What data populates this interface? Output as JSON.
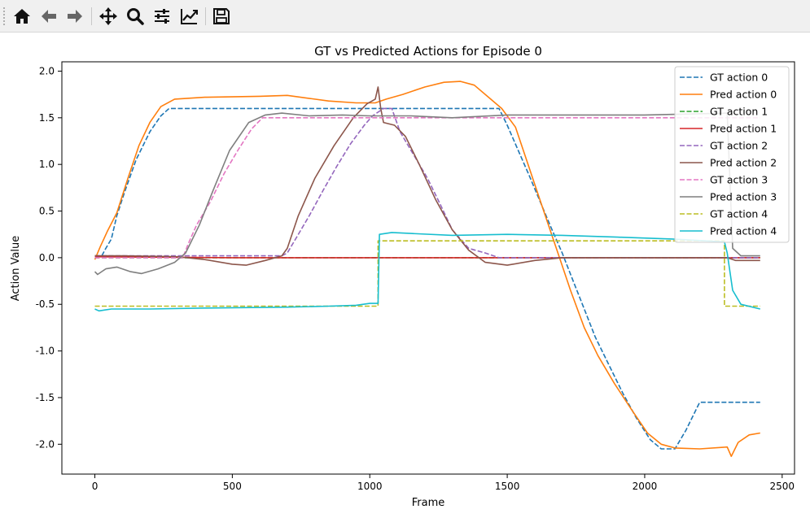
{
  "toolbar": {
    "items": [
      {
        "icon": "home-icon"
      },
      {
        "icon": "back-arrow-icon"
      },
      {
        "icon": "forward-arrow-icon"
      },
      {
        "icon": "pan-icon"
      },
      {
        "icon": "zoom-icon"
      },
      {
        "icon": "configure-subplots-icon"
      },
      {
        "icon": "edit-axis-icon"
      },
      {
        "icon": "save-icon"
      }
    ]
  },
  "chart_data": {
    "type": "line",
    "title": "GT vs Predicted Actions for Episode 0",
    "xlabel": "Frame",
    "ylabel": "Action Value",
    "xlim": [
      -120,
      2545
    ],
    "ylim": [
      -2.32,
      2.1
    ],
    "xticks": [
      0,
      500,
      1000,
      1500,
      2000,
      2500
    ],
    "yticks": [
      -2.0,
      -1.5,
      -1.0,
      -0.5,
      0.0,
      0.5,
      1.0,
      1.5,
      2.0
    ],
    "grid": false,
    "legend": "top-right",
    "series": [
      {
        "name": "GT action 0",
        "style": "dashed",
        "color": "#1f77b4",
        "points": [
          [
            0,
            0.02
          ],
          [
            25,
            0.02
          ],
          [
            40,
            0.1
          ],
          [
            60,
            0.2
          ],
          [
            80,
            0.45
          ],
          [
            110,
            0.72
          ],
          [
            150,
            1.05
          ],
          [
            200,
            1.35
          ],
          [
            240,
            1.52
          ],
          [
            270,
            1.6
          ],
          [
            1470,
            1.6
          ],
          [
            1500,
            1.42
          ],
          [
            1540,
            1.15
          ],
          [
            1580,
            0.88
          ],
          [
            1620,
            0.6
          ],
          [
            1660,
            0.32
          ],
          [
            1700,
            0.05
          ],
          [
            1740,
            -0.25
          ],
          [
            1780,
            -0.55
          ],
          [
            1820,
            -0.85
          ],
          [
            1870,
            -1.15
          ],
          [
            1920,
            -1.45
          ],
          [
            1970,
            -1.72
          ],
          [
            2020,
            -1.95
          ],
          [
            2060,
            -2.05
          ],
          [
            2110,
            -2.05
          ],
          [
            2150,
            -1.85
          ],
          [
            2200,
            -1.55
          ],
          [
            2420,
            -1.55
          ]
        ]
      },
      {
        "name": "Pred action 0",
        "style": "solid",
        "color": "#ff7f0e",
        "points": [
          [
            0,
            -0.02
          ],
          [
            20,
            0.12
          ],
          [
            45,
            0.28
          ],
          [
            80,
            0.48
          ],
          [
            120,
            0.85
          ],
          [
            160,
            1.2
          ],
          [
            200,
            1.45
          ],
          [
            240,
            1.62
          ],
          [
            290,
            1.7
          ],
          [
            400,
            1.72
          ],
          [
            600,
            1.73
          ],
          [
            700,
            1.74
          ],
          [
            850,
            1.68
          ],
          [
            950,
            1.66
          ],
          [
            1020,
            1.66
          ],
          [
            1060,
            1.7
          ],
          [
            1120,
            1.75
          ],
          [
            1200,
            1.83
          ],
          [
            1270,
            1.88
          ],
          [
            1330,
            1.89
          ],
          [
            1380,
            1.85
          ],
          [
            1440,
            1.7
          ],
          [
            1480,
            1.6
          ],
          [
            1530,
            1.4
          ],
          [
            1570,
            1.05
          ],
          [
            1610,
            0.7
          ],
          [
            1650,
            0.35
          ],
          [
            1690,
            0.0
          ],
          [
            1730,
            -0.35
          ],
          [
            1780,
            -0.75
          ],
          [
            1830,
            -1.05
          ],
          [
            1890,
            -1.35
          ],
          [
            1950,
            -1.62
          ],
          [
            2010,
            -1.88
          ],
          [
            2060,
            -2.0
          ],
          [
            2110,
            -2.04
          ],
          [
            2200,
            -2.05
          ],
          [
            2300,
            -2.03
          ],
          [
            2315,
            -2.13
          ],
          [
            2340,
            -1.98
          ],
          [
            2380,
            -1.9
          ],
          [
            2420,
            -1.88
          ]
        ]
      },
      {
        "name": "GT action 1",
        "style": "dashed",
        "color": "#2ca02c",
        "points": [
          [
            0,
            0.0
          ],
          [
            2420,
            0.0
          ]
        ]
      },
      {
        "name": "Pred action 1",
        "style": "solid",
        "color": "#d62728",
        "points": [
          [
            0,
            0.01
          ],
          [
            500,
            0.0
          ],
          [
            1000,
            0.0
          ],
          [
            1500,
            0.0
          ],
          [
            2000,
            0.0
          ],
          [
            2420,
            0.0
          ]
        ]
      },
      {
        "name": "GT action 2",
        "style": "dashed",
        "color": "#9467bd",
        "points": [
          [
            0,
            0.02
          ],
          [
            680,
            0.02
          ],
          [
            700,
            0.05
          ],
          [
            730,
            0.2
          ],
          [
            780,
            0.45
          ],
          [
            830,
            0.72
          ],
          [
            880,
            0.98
          ],
          [
            930,
            1.22
          ],
          [
            980,
            1.42
          ],
          [
            1010,
            1.52
          ],
          [
            1050,
            1.6
          ],
          [
            1080,
            1.6
          ],
          [
            1110,
            1.35
          ],
          [
            1160,
            1.1
          ],
          [
            1210,
            0.85
          ],
          [
            1260,
            0.55
          ],
          [
            1300,
            0.3
          ],
          [
            1360,
            0.1
          ],
          [
            1420,
            0.05
          ],
          [
            1470,
            0.0
          ],
          [
            2420,
            0.0
          ]
        ]
      },
      {
        "name": "Pred action 2",
        "style": "solid",
        "color": "#8c564b",
        "points": [
          [
            0,
            0.02
          ],
          [
            100,
            0.02
          ],
          [
            300,
            0.01
          ],
          [
            400,
            -0.02
          ],
          [
            500,
            -0.07
          ],
          [
            550,
            -0.08
          ],
          [
            620,
            -0.03
          ],
          [
            680,
            0.02
          ],
          [
            700,
            0.1
          ],
          [
            740,
            0.45
          ],
          [
            800,
            0.85
          ],
          [
            870,
            1.2
          ],
          [
            940,
            1.5
          ],
          [
            990,
            1.65
          ],
          [
            1020,
            1.7
          ],
          [
            1030,
            1.83
          ],
          [
            1040,
            1.6
          ],
          [
            1050,
            1.45
          ],
          [
            1090,
            1.42
          ],
          [
            1130,
            1.3
          ],
          [
            1180,
            1.0
          ],
          [
            1240,
            0.62
          ],
          [
            1300,
            0.3
          ],
          [
            1360,
            0.08
          ],
          [
            1420,
            -0.05
          ],
          [
            1500,
            -0.08
          ],
          [
            1600,
            -0.03
          ],
          [
            1700,
            0.0
          ],
          [
            2300,
            0.0
          ],
          [
            2330,
            -0.03
          ],
          [
            2420,
            -0.03
          ]
        ]
      },
      {
        "name": "GT action 3",
        "style": "dashed",
        "color": "#e377c2",
        "points": [
          [
            0,
            0.0
          ],
          [
            320,
            0.0
          ],
          [
            340,
            0.15
          ],
          [
            370,
            0.35
          ],
          [
            420,
            0.6
          ],
          [
            470,
            0.9
          ],
          [
            520,
            1.15
          ],
          [
            570,
            1.38
          ],
          [
            610,
            1.5
          ],
          [
            2420,
            1.5
          ]
        ]
      },
      {
        "name": "Pred action 3",
        "style": "solid",
        "color": "#7f7f7f",
        "points": [
          [
            0,
            -0.15
          ],
          [
            10,
            -0.18
          ],
          [
            40,
            -0.12
          ],
          [
            80,
            -0.1
          ],
          [
            130,
            -0.15
          ],
          [
            170,
            -0.17
          ],
          [
            230,
            -0.12
          ],
          [
            290,
            -0.05
          ],
          [
            330,
            0.05
          ],
          [
            380,
            0.35
          ],
          [
            430,
            0.72
          ],
          [
            490,
            1.15
          ],
          [
            560,
            1.45
          ],
          [
            620,
            1.53
          ],
          [
            680,
            1.55
          ],
          [
            780,
            1.52
          ],
          [
            900,
            1.53
          ],
          [
            1000,
            1.52
          ],
          [
            1150,
            1.52
          ],
          [
            1300,
            1.5
          ],
          [
            1500,
            1.53
          ],
          [
            2000,
            1.53
          ],
          [
            2300,
            1.55
          ],
          [
            2320,
            0.1
          ],
          [
            2350,
            0.02
          ],
          [
            2420,
            0.02
          ]
        ]
      },
      {
        "name": "GT action 4",
        "style": "dashed",
        "color": "#bcbd22",
        "points": [
          [
            0,
            -0.52
          ],
          [
            1030,
            -0.52
          ],
          [
            1030,
            0.18
          ],
          [
            2290,
            0.18
          ],
          [
            2290,
            -0.52
          ],
          [
            2420,
            -0.52
          ]
        ]
      },
      {
        "name": "Pred action 4",
        "style": "solid",
        "color": "#17becf",
        "points": [
          [
            0,
            -0.55
          ],
          [
            15,
            -0.57
          ],
          [
            60,
            -0.55
          ],
          [
            200,
            -0.55
          ],
          [
            400,
            -0.54
          ],
          [
            700,
            -0.53
          ],
          [
            850,
            -0.52
          ],
          [
            950,
            -0.51
          ],
          [
            1000,
            -0.49
          ],
          [
            1030,
            -0.49
          ],
          [
            1035,
            0.25
          ],
          [
            1080,
            0.27
          ],
          [
            1150,
            0.26
          ],
          [
            1300,
            0.24
          ],
          [
            1500,
            0.25
          ],
          [
            1700,
            0.24
          ],
          [
            1900,
            0.22
          ],
          [
            2100,
            0.2
          ],
          [
            2290,
            0.17
          ],
          [
            2300,
            0.05
          ],
          [
            2320,
            -0.35
          ],
          [
            2350,
            -0.5
          ],
          [
            2420,
            -0.55
          ]
        ]
      }
    ]
  }
}
